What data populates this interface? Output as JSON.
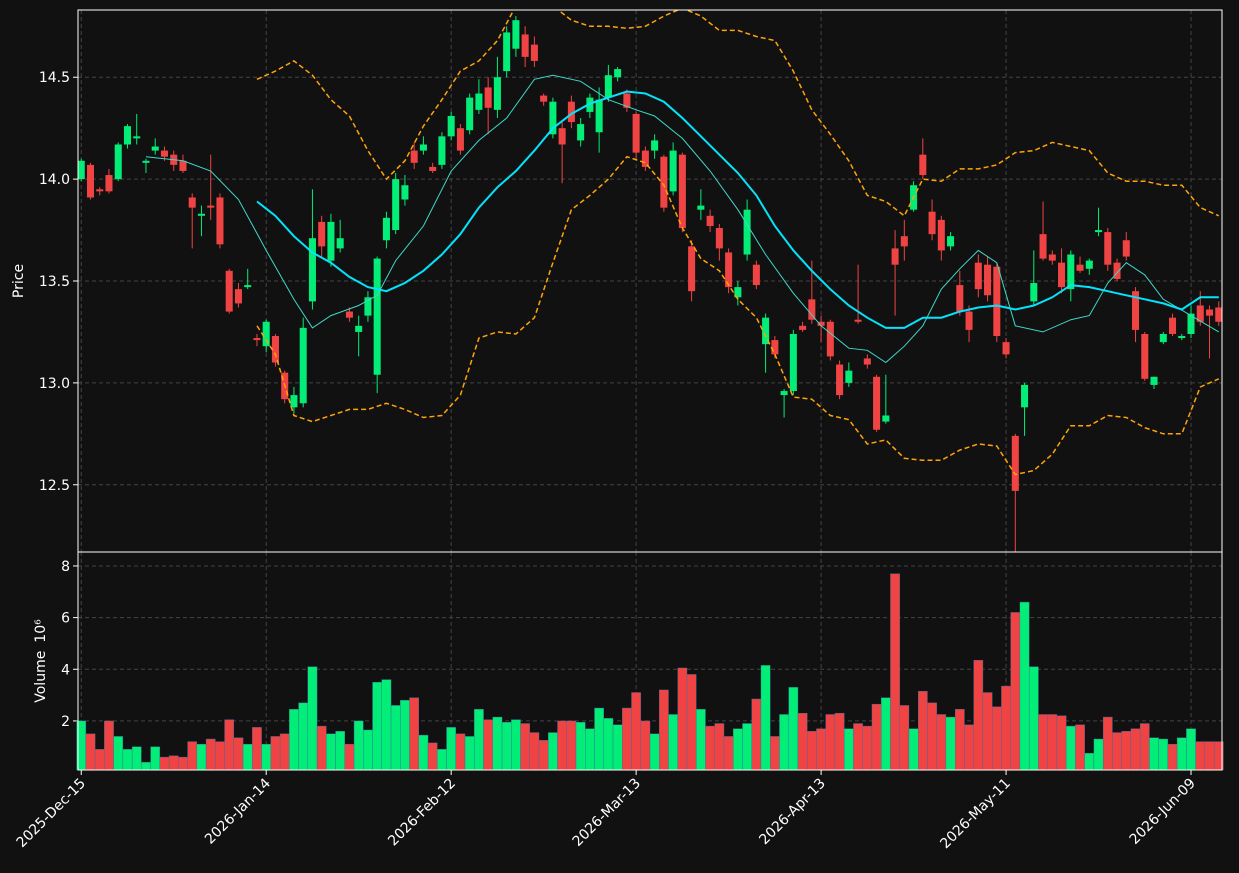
{
  "chart_data": [
    {
      "type": "candlestick",
      "ylabel": "Price",
      "xlim": [
        -0.35,
        123.35
      ],
      "ylim": [
        12.17,
        14.83
      ],
      "yticks": [
        12.5,
        {
          "value": 13,
          "label": "13.0"
        },
        13.5,
        {
          "value": 14,
          "label": "14.0"
        },
        14.5
      ],
      "grid": true,
      "up_color": "#00ee77",
      "down_color": "#f04444",
      "open": [
        14.0,
        14.07,
        13.95,
        14.02,
        14.0,
        14.17,
        14.2,
        14.08,
        14.14,
        14.14,
        14.12,
        14.09,
        13.91,
        13.82,
        13.87,
        13.91,
        13.55,
        13.46,
        13.47,
        13.22,
        13.18,
        13.23,
        13.05,
        12.88,
        12.9,
        13.4,
        13.79,
        13.6,
        13.66,
        13.35,
        13.25,
        13.33,
        13.04,
        13.7,
        13.75,
        13.9,
        14.14,
        14.14,
        14.06,
        14.07,
        14.21,
        14.25,
        14.24,
        14.34,
        14.45,
        14.34,
        14.53,
        14.64,
        14.71,
        14.66,
        14.41,
        14.22,
        14.25,
        14.38,
        14.19,
        14.33,
        14.23,
        14.4,
        14.5,
        14.42,
        14.32,
        14.14,
        14.14,
        14.11,
        13.94,
        14.12,
        13.67,
        13.85,
        13.82,
        13.76,
        13.64,
        13.42,
        13.63,
        13.58,
        13.19,
        13.21,
        12.94,
        12.96,
        13.28,
        13.41,
        13.3,
        13.3,
        13.09,
        13.0,
        13.31,
        13.12,
        13.03,
        12.81,
        13.66,
        13.72,
        13.85,
        14.12,
        13.84,
        13.8,
        13.67,
        13.48,
        13.35,
        13.59,
        13.58,
        13.57,
        13.2,
        12.74,
        12.88,
        13.4,
        13.73,
        13.63,
        13.59,
        13.46,
        13.58,
        13.56,
        13.74,
        13.74,
        13.59,
        13.7,
        13.45,
        13.24,
        12.99,
        13.2,
        13.32,
        13.22,
        13.24,
        13.38,
        13.36,
        13.37
      ],
      "high": [
        14.1,
        14.08,
        13.96,
        14.05,
        14.18,
        14.27,
        14.32,
        14.1,
        14.2,
        14.16,
        14.14,
        14.12,
        13.93,
        13.87,
        14.12,
        13.93,
        13.56,
        13.49,
        13.56,
        13.24,
        13.31,
        13.24,
        13.06,
        12.98,
        13.32,
        13.95,
        13.82,
        13.83,
        13.8,
        13.37,
        13.33,
        13.45,
        13.62,
        13.84,
        14.03,
        14.02,
        14.18,
        14.21,
        14.08,
        14.23,
        14.33,
        14.27,
        14.42,
        14.49,
        14.5,
        14.6,
        14.75,
        14.8,
        14.75,
        14.7,
        14.42,
        14.4,
        14.28,
        14.41,
        14.3,
        14.42,
        14.45,
        14.56,
        14.55,
        14.44,
        14.33,
        14.16,
        14.22,
        14.12,
        14.18,
        14.13,
        13.7,
        13.95,
        13.85,
        13.78,
        13.66,
        13.5,
        13.9,
        13.6,
        13.34,
        13.23,
        12.97,
        13.26,
        13.3,
        13.6,
        13.33,
        13.31,
        13.11,
        13.1,
        13.58,
        13.14,
        13.04,
        13.04,
        13.75,
        13.8,
        13.99,
        14.2,
        13.9,
        13.82,
        13.74,
        13.55,
        13.38,
        13.63,
        13.62,
        13.59,
        13.22,
        12.75,
        13.0,
        13.65,
        13.89,
        13.65,
        13.66,
        13.65,
        13.62,
        13.61,
        13.86,
        13.76,
        13.61,
        13.74,
        13.47,
        13.25,
        13.03,
        13.25,
        13.34,
        13.24,
        13.38,
        13.45,
        13.38,
        13.4
      ],
      "low": [
        13.99,
        13.9,
        13.92,
        13.93,
        13.99,
        14.15,
        14.17,
        14.03,
        14.12,
        14.09,
        14.04,
        14.03,
        13.66,
        13.72,
        13.8,
        13.66,
        13.34,
        13.37,
        13.46,
        13.18,
        13.15,
        13.08,
        12.9,
        12.85,
        12.88,
        13.36,
        13.62,
        13.57,
        13.64,
        13.3,
        13.13,
        13.3,
        12.95,
        13.66,
        13.73,
        13.87,
        14.05,
        14.12,
        14.03,
        14.05,
        14.19,
        14.12,
        14.22,
        14.32,
        14.22,
        14.3,
        14.5,
        14.6,
        14.55,
        14.55,
        14.36,
        14.2,
        13.98,
        14.25,
        14.16,
        14.3,
        14.13,
        14.38,
        14.48,
        14.33,
        14.1,
        14.04,
        14.1,
        13.84,
        13.92,
        13.74,
        13.4,
        13.8,
        13.74,
        13.6,
        13.44,
        13.38,
        13.6,
        13.46,
        13.05,
        13.12,
        12.83,
        12.94,
        13.25,
        13.29,
        13.2,
        13.11,
        12.92,
        12.98,
        13.29,
        13.07,
        12.76,
        12.8,
        13.33,
        13.6,
        13.84,
        14.0,
        13.7,
        13.6,
        13.65,
        13.33,
        13.2,
        13.42,
        13.4,
        13.2,
        13.12,
        12.16,
        12.74,
        13.38,
        13.6,
        13.58,
        13.44,
        13.4,
        13.54,
        13.53,
        13.72,
        13.55,
        13.5,
        13.6,
        13.2,
        13.01,
        12.97,
        13.19,
        13.23,
        13.21,
        13.22,
        13.28,
        13.12,
        13.28
      ],
      "close": [
        14.09,
        13.91,
        13.94,
        13.94,
        14.17,
        14.26,
        14.21,
        14.09,
        14.16,
        14.11,
        14.07,
        14.04,
        13.86,
        13.83,
        13.86,
        13.68,
        13.35,
        13.39,
        13.48,
        13.21,
        13.3,
        13.1,
        12.92,
        12.94,
        13.27,
        13.71,
        13.67,
        13.79,
        13.71,
        13.32,
        13.28,
        13.42,
        13.61,
        13.81,
        14.0,
        13.97,
        14.08,
        14.17,
        14.04,
        14.21,
        14.31,
        14.14,
        14.4,
        14.42,
        14.35,
        14.5,
        14.72,
        14.78,
        14.6,
        14.58,
        14.38,
        14.38,
        14.17,
        14.28,
        14.27,
        14.4,
        14.39,
        14.51,
        14.54,
        14.35,
        14.13,
        14.06,
        14.19,
        13.86,
        14.14,
        13.76,
        13.45,
        13.87,
        13.77,
        13.66,
        13.47,
        13.47,
        13.85,
        13.48,
        13.32,
        13.14,
        12.96,
        13.24,
        13.26,
        13.31,
        13.28,
        13.13,
        12.94,
        13.06,
        13.3,
        13.09,
        12.77,
        12.84,
        13.58,
        13.67,
        13.97,
        14.02,
        13.73,
        13.65,
        13.72,
        13.35,
        13.26,
        13.46,
        13.43,
        13.23,
        13.14,
        12.47,
        12.99,
        13.49,
        13.61,
        13.6,
        13.47,
        13.63,
        13.55,
        13.6,
        13.75,
        13.58,
        13.51,
        13.62,
        13.26,
        13.02,
        13.03,
        13.24,
        13.24,
        13.23,
        13.34,
        13.3,
        13.33,
        13.3
      ],
      "lines": [
        {
          "color": "#3dd9c9",
          "width": 1,
          "x": [
            7,
            11,
            14,
            17,
            20,
            23,
            25,
            27,
            30,
            32,
            34,
            37,
            40,
            43,
            46,
            49,
            51,
            54,
            57,
            60,
            62,
            65,
            68,
            71,
            74,
            77,
            80,
            83,
            85,
            87,
            89,
            91,
            93,
            95,
            97,
            99,
            101,
            104,
            107,
            109,
            111,
            113,
            115,
            117,
            120,
            123
          ],
          "values": [
            14.11,
            14.09,
            14.04,
            13.9,
            13.65,
            13.41,
            13.27,
            13.33,
            13.38,
            13.43,
            13.6,
            13.77,
            14.04,
            14.19,
            14.3,
            14.49,
            14.51,
            14.48,
            14.39,
            14.34,
            14.31,
            14.2,
            14.04,
            13.85,
            13.63,
            13.44,
            13.28,
            13.17,
            13.16,
            13.1,
            13.18,
            13.28,
            13.46,
            13.56,
            13.65,
            13.59,
            13.28,
            13.25,
            13.31,
            13.33,
            13.49,
            13.59,
            13.53,
            13.41,
            13.33,
            13.25
          ]
        },
        {
          "color": "#00e5ff",
          "width": 2,
          "x": [
            19,
            21,
            23,
            25,
            27,
            29,
            31,
            33,
            35,
            37,
            39,
            41,
            43,
            45,
            47,
            49,
            51,
            53,
            55,
            57,
            59,
            61,
            63,
            65,
            67,
            69,
            71,
            73,
            75,
            77,
            79,
            81,
            83,
            85,
            87,
            89,
            91,
            93,
            95,
            97,
            99,
            101,
            103,
            105,
            107,
            109,
            111,
            113,
            115,
            117,
            119,
            121,
            123
          ],
          "values": [
            13.89,
            13.82,
            13.72,
            13.64,
            13.59,
            13.52,
            13.47,
            13.45,
            13.49,
            13.55,
            13.63,
            13.73,
            13.86,
            13.96,
            14.04,
            14.14,
            14.25,
            14.32,
            14.37,
            14.4,
            14.43,
            14.42,
            14.38,
            14.3,
            14.21,
            14.12,
            14.03,
            13.92,
            13.77,
            13.65,
            13.55,
            13.46,
            13.38,
            13.32,
            13.27,
            13.27,
            13.32,
            13.32,
            13.35,
            13.37,
            13.38,
            13.36,
            13.38,
            13.42,
            13.48,
            13.47,
            13.45,
            13.43,
            13.41,
            13.39,
            13.36,
            13.42,
            13.42
          ]
        },
        {
          "color": "#ffa500",
          "width": 1.5,
          "dash": true,
          "x": [
            19,
            21,
            23,
            25,
            27,
            29,
            31,
            33,
            35,
            37,
            39,
            41,
            43,
            45,
            47,
            49,
            51,
            53,
            55,
            57,
            59,
            61,
            63,
            65,
            67,
            69,
            71,
            73,
            75,
            77,
            79,
            81,
            83,
            85,
            87,
            89,
            91,
            93,
            95,
            97,
            99,
            101,
            103,
            105,
            107,
            109,
            111,
            113,
            115,
            117,
            119,
            121,
            123
          ],
          "values": [
            14.49,
            14.53,
            14.58,
            14.51,
            14.39,
            14.31,
            14.14,
            14.0,
            14.09,
            14.26,
            14.39,
            14.53,
            14.58,
            14.68,
            14.85,
            14.93,
            14.85,
            14.78,
            14.75,
            14.75,
            14.74,
            14.75,
            14.8,
            14.84,
            14.8,
            14.73,
            14.73,
            14.7,
            14.68,
            14.53,
            14.34,
            14.22,
            14.09,
            13.92,
            13.89,
            13.82,
            14.0,
            13.99,
            14.05,
            14.05,
            14.07,
            14.13,
            14.14,
            14.18,
            14.16,
            14.14,
            14.03,
            13.99,
            13.99,
            13.97,
            13.97,
            13.86,
            13.82
          ]
        },
        {
          "color": "#ffa500",
          "width": 1.5,
          "dash": true,
          "x": [
            19,
            21,
            23,
            25,
            27,
            29,
            31,
            33,
            35,
            37,
            39,
            41,
            43,
            45,
            47,
            49,
            51,
            53,
            55,
            57,
            59,
            61,
            63,
            65,
            67,
            69,
            71,
            73,
            75,
            77,
            79,
            81,
            83,
            85,
            87,
            89,
            91,
            93,
            95,
            97,
            99,
            101,
            103,
            105,
            107,
            109,
            111,
            113,
            115,
            117,
            119,
            121,
            123
          ],
          "values": [
            13.28,
            13.14,
            12.84,
            12.81,
            12.84,
            12.87,
            12.87,
            12.9,
            12.87,
            12.83,
            12.84,
            12.94,
            13.22,
            13.25,
            13.24,
            13.32,
            13.59,
            13.85,
            13.92,
            14.0,
            14.11,
            14.08,
            13.97,
            13.76,
            13.61,
            13.55,
            13.41,
            13.32,
            13.14,
            12.93,
            12.92,
            12.84,
            12.82,
            12.7,
            12.72,
            12.63,
            12.62,
            12.62,
            12.67,
            12.7,
            12.69,
            12.55,
            12.57,
            12.65,
            12.79,
            12.79,
            12.84,
            12.83,
            12.78,
            12.75,
            12.75,
            12.98,
            13.02
          ]
        }
      ]
    },
    {
      "type": "bar",
      "ylabel": "Volume",
      "offset_label": "10⁶",
      "xlim": [
        -0.35,
        123.35
      ],
      "ylim": [
        0.1,
        8.54
      ],
      "yticks": [
        2,
        4,
        6,
        8
      ],
      "grid": true,
      "up_color": "#00ee77",
      "down_color": "#f04444",
      "categories": [
        "2025-Dec-15",
        null,
        null,
        null,
        null,
        null,
        null,
        null,
        null,
        null,
        null,
        null,
        null,
        null,
        null,
        null,
        null,
        null,
        null,
        null,
        "2026-Jan-14",
        null,
        null,
        null,
        null,
        null,
        null,
        null,
        null,
        null,
        null,
        null,
        null,
        null,
        null,
        null,
        null,
        null,
        null,
        null,
        "2026-Feb-12",
        null,
        null,
        null,
        null,
        null,
        null,
        null,
        null,
        null,
        null,
        null,
        null,
        null,
        null,
        null,
        null,
        null,
        null,
        null,
        "2026-Mar-13",
        null,
        null,
        null,
        null,
        null,
        null,
        null,
        null,
        null,
        null,
        null,
        null,
        null,
        null,
        null,
        null,
        null,
        null,
        null,
        "2026-Apr-13",
        null,
        null,
        null,
        null,
        null,
        null,
        null,
        null,
        null,
        null,
        null,
        null,
        null,
        null,
        null,
        null,
        null,
        null,
        null,
        "2026-May-11",
        null,
        null,
        null,
        null,
        null,
        null,
        null,
        null,
        null,
        null,
        null,
        null,
        null,
        null,
        null,
        null,
        null,
        null,
        null,
        "2026-Jun-09",
        null,
        null,
        null
      ],
      "values": [
        2.0,
        1.5,
        0.9,
        2.0,
        1.4,
        0.9,
        1.0,
        0.4,
        1.0,
        0.6,
        0.65,
        0.6,
        1.2,
        1.1,
        1.3,
        1.2,
        2.05,
        1.35,
        1.1,
        1.75,
        1.1,
        1.4,
        1.5,
        2.45,
        2.7,
        4.1,
        1.8,
        1.5,
        1.6,
        1.1,
        2.0,
        1.65,
        3.5,
        3.6,
        2.6,
        2.8,
        2.9,
        1.45,
        1.15,
        0.9,
        1.75,
        1.5,
        1.4,
        2.45,
        2.05,
        2.15,
        1.95,
        2.05,
        1.9,
        1.55,
        1.25,
        1.55,
        2.0,
        2.0,
        1.95,
        1.7,
        2.5,
        2.1,
        1.85,
        2.5,
        3.1,
        2.0,
        1.5,
        3.2,
        2.25,
        4.05,
        3.8,
        2.45,
        1.8,
        1.9,
        1.4,
        1.7,
        1.9,
        2.85,
        4.15,
        1.4,
        2.25,
        3.3,
        2.3,
        1.6,
        1.7,
        2.25,
        2.3,
        1.7,
        1.9,
        1.8,
        2.65,
        2.9,
        7.7,
        2.6,
        1.7,
        3.15,
        2.7,
        2.25,
        2.15,
        2.45,
        1.85,
        4.35,
        3.1,
        2.55,
        3.35,
        6.2,
        6.6,
        4.1,
        2.25,
        2.25,
        2.2,
        1.8,
        1.85,
        0.75,
        1.3,
        2.15,
        1.55,
        1.6,
        1.7,
        1.9,
        1.35,
        1.3,
        1.1,
        1.35,
        1.7,
        1.2,
        1.2,
        1.2
      ]
    }
  ]
}
